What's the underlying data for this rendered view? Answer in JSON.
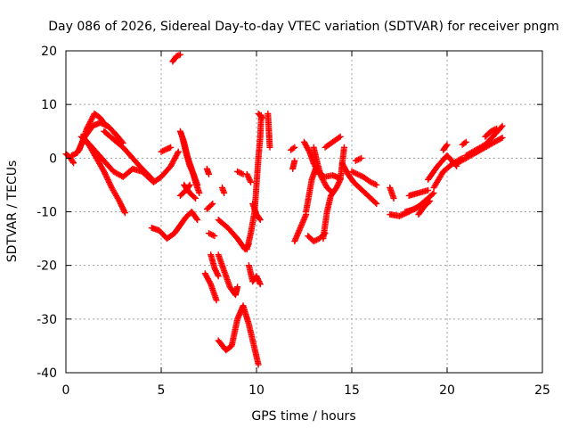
{
  "chart_data": {
    "type": "scatter",
    "title": "Day 086 of 2026, Sidereal Day-to-day VTEC variation (SDTVAR) for receiver pngm",
    "xlabel": "GPS time / hours",
    "ylabel": "SDTVAR / TECUs",
    "xlim": [
      0,
      25
    ],
    "ylim": [
      -40,
      20
    ],
    "xticks": [
      0,
      5,
      10,
      15,
      20,
      25
    ],
    "yticks": [
      -40,
      -30,
      -20,
      -10,
      0,
      10,
      20
    ],
    "grid": true,
    "marker": "plus",
    "color": "#ff0000",
    "tracks": [
      [
        [
          0.0,
          0.8
        ],
        [
          0.2,
          0.2
        ],
        [
          0.4,
          -0.9
        ]
      ],
      [
        [
          0.3,
          0.5
        ],
        [
          0.5,
          0.8
        ],
        [
          0.7,
          1.5
        ]
      ],
      [
        [
          0.6,
          1.0
        ],
        [
          1.0,
          4.0
        ],
        [
          1.4,
          6.0
        ],
        [
          1.8,
          6.6
        ],
        [
          2.2,
          6.0
        ],
        [
          2.6,
          4.5
        ],
        [
          3.0,
          2.8
        ]
      ],
      [
        [
          0.7,
          1.5
        ],
        [
          1.1,
          5.5
        ],
        [
          1.5,
          8.3
        ],
        [
          1.8,
          7.5
        ],
        [
          2.1,
          6.0
        ]
      ],
      [
        [
          0.8,
          4.0
        ],
        [
          1.2,
          2.5
        ],
        [
          1.6,
          0.0
        ],
        [
          2.0,
          -2.5
        ],
        [
          2.4,
          -5.5
        ],
        [
          2.8,
          -8.0
        ],
        [
          3.1,
          -10.2
        ]
      ],
      [
        [
          1.0,
          3.5
        ],
        [
          1.5,
          1.5
        ],
        [
          2.0,
          -0.5
        ],
        [
          2.5,
          -2.5
        ],
        [
          3.0,
          -3.5
        ],
        [
          3.5,
          -2.0
        ],
        [
          4.0,
          -2.5
        ],
        [
          4.6,
          -4.5
        ],
        [
          5.0,
          -3.5
        ],
        [
          5.5,
          -1.5
        ],
        [
          5.9,
          1.2
        ]
      ],
      [
        [
          2.0,
          5.0
        ],
        [
          2.5,
          3.5
        ],
        [
          3.0,
          2.0
        ],
        [
          3.5,
          0.0
        ],
        [
          4.0,
          -2.0
        ],
        [
          4.5,
          -3.8
        ]
      ],
      [
        [
          5.0,
          1.2
        ],
        [
          5.3,
          1.7
        ],
        [
          5.5,
          2.0
        ]
      ],
      [
        [
          5.6,
          18.0
        ],
        [
          5.8,
          19.0
        ],
        [
          6.0,
          19.3
        ]
      ],
      [
        [
          4.5,
          -13.0
        ],
        [
          4.9,
          -13.5
        ],
        [
          5.3,
          -15.0
        ],
        [
          5.7,
          -14.0
        ],
        [
          6.0,
          -12.5
        ],
        [
          6.3,
          -11.0
        ],
        [
          6.6,
          -10.0
        ],
        [
          6.9,
          -11.5
        ]
      ],
      [
        [
          6.0,
          5.0
        ],
        [
          6.2,
          3.0
        ],
        [
          6.4,
          0.0
        ],
        [
          6.6,
          -2.0
        ],
        [
          6.8,
          -4.5
        ],
        [
          7.0,
          -6.5
        ]
      ],
      [
        [
          6.1,
          4.0
        ],
        [
          6.3,
          1.0
        ],
        [
          6.5,
          -1.5
        ],
        [
          6.7,
          -3.0
        ],
        [
          6.9,
          -5.0
        ]
      ],
      [
        [
          6.2,
          -5.0
        ],
        [
          6.5,
          -6.5
        ],
        [
          6.8,
          -7.5
        ]
      ],
      [
        [
          6.0,
          -7.0
        ],
        [
          6.3,
          -6.0
        ],
        [
          6.5,
          -5.0
        ]
      ],
      [
        [
          7.4,
          -2.0
        ],
        [
          7.5,
          -3.0
        ]
      ],
      [
        [
          7.4,
          -9.5
        ],
        [
          7.7,
          -8.5
        ]
      ],
      [
        [
          7.5,
          -14.0
        ],
        [
          7.8,
          -14.5
        ]
      ],
      [
        [
          7.3,
          -21.5
        ],
        [
          7.6,
          -23.5
        ],
        [
          7.9,
          -26.5
        ]
      ],
      [
        [
          7.6,
          -18.0
        ],
        [
          7.8,
          -20.5
        ],
        [
          8.0,
          -22.0
        ]
      ],
      [
        [
          8.2,
          -5.5
        ],
        [
          8.3,
          -6.5
        ]
      ],
      [
        [
          8.0,
          -18.0
        ],
        [
          8.3,
          -21.0
        ],
        [
          8.6,
          -24.0
        ],
        [
          8.9,
          -25.5
        ],
        [
          9.0,
          -24.0
        ]
      ],
      [
        [
          8.0,
          -11.5
        ],
        [
          8.5,
          -13.0
        ],
        [
          9.0,
          -15.0
        ],
        [
          9.4,
          -17.0
        ],
        [
          9.6,
          -16.0
        ]
      ],
      [
        [
          8.0,
          -34.0
        ],
        [
          8.4,
          -35.8
        ],
        [
          8.7,
          -35.0
        ],
        [
          9.0,
          -30.0
        ],
        [
          9.3,
          -27.5
        ],
        [
          9.6,
          -31.0
        ],
        [
          9.9,
          -35.5
        ],
        [
          10.1,
          -38.5
        ]
      ],
      [
        [
          9.0,
          -2.5
        ],
        [
          9.3,
          -3.0
        ]
      ],
      [
        [
          9.5,
          -3.0
        ],
        [
          9.7,
          -4.5
        ]
      ],
      [
        [
          9.5,
          -17.0
        ],
        [
          9.7,
          -14.0
        ],
        [
          9.9,
          -10.0
        ],
        [
          10.0,
          -5.0
        ],
        [
          10.1,
          0.0
        ],
        [
          10.2,
          4.0
        ],
        [
          10.25,
          8.0
        ]
      ],
      [
        [
          9.6,
          -20.0
        ],
        [
          9.8,
          -23.0
        ],
        [
          10.0,
          -22.0
        ],
        [
          10.2,
          -23.5
        ]
      ],
      [
        [
          9.8,
          -8.5
        ],
        [
          10.0,
          -10.5
        ],
        [
          10.2,
          -11.5
        ]
      ],
      [
        [
          10.1,
          8.3
        ],
        [
          10.3,
          7.5
        ]
      ],
      [
        [
          10.6,
          8.3
        ],
        [
          10.7,
          2.0
        ]
      ],
      [
        [
          11.8,
          1.5
        ],
        [
          12.0,
          2.0
        ]
      ],
      [
        [
          11.9,
          -2.0
        ],
        [
          12.0,
          -0.5
        ]
      ],
      [
        [
          12.0,
          -15.5
        ],
        [
          12.3,
          -13.0
        ],
        [
          12.6,
          -10.5
        ]
      ],
      [
        [
          12.5,
          3.0
        ],
        [
          12.8,
          1.0
        ],
        [
          13.0,
          -1.0
        ],
        [
          13.3,
          -3.0
        ],
        [
          13.6,
          -3.5
        ],
        [
          14.0,
          -3.2
        ],
        [
          14.4,
          -3.8
        ]
      ],
      [
        [
          12.6,
          -10.0
        ],
        [
          12.9,
          -4.0
        ],
        [
          13.1,
          -2.0
        ],
        [
          13.4,
          -3.0
        ]
      ],
      [
        [
          12.7,
          -14.5
        ],
        [
          13.0,
          -15.5
        ],
        [
          13.3,
          -15.0
        ],
        [
          13.6,
          -14.0
        ]
      ],
      [
        [
          13.0,
          2.0
        ],
        [
          13.2,
          -1.0
        ],
        [
          13.4,
          -3.5
        ],
        [
          13.7,
          -5.5
        ],
        [
          14.0,
          -6.5
        ]
      ],
      [
        [
          13.5,
          -15.0
        ],
        [
          13.7,
          -10.0
        ],
        [
          13.9,
          -7.0
        ],
        [
          14.2,
          -5.5
        ],
        [
          14.4,
          -4.0
        ],
        [
          14.6,
          2.0
        ]
      ],
      [
        [
          13.6,
          2.0
        ],
        [
          13.8,
          2.5
        ],
        [
          14.0,
          3.0
        ],
        [
          14.2,
          3.5
        ],
        [
          14.4,
          4.0
        ]
      ],
      [
        [
          14.5,
          -1.0
        ],
        [
          14.8,
          -3.0
        ],
        [
          15.1,
          -4.5
        ],
        [
          15.4,
          -5.5
        ],
        [
          15.7,
          -6.5
        ],
        [
          16.0,
          -7.5
        ],
        [
          16.3,
          -8.5
        ]
      ],
      [
        [
          15.0,
          -2.5
        ],
        [
          15.3,
          -3.0
        ],
        [
          15.6,
          -3.5
        ],
        [
          16.0,
          -4.5
        ],
        [
          16.3,
          -5.0
        ]
      ],
      [
        [
          15.2,
          -0.5
        ],
        [
          15.5,
          0.0
        ]
      ],
      [
        [
          17.0,
          -5.5
        ],
        [
          17.2,
          -7.5
        ]
      ],
      [
        [
          17.0,
          -10.5
        ],
        [
          17.5,
          -10.8
        ],
        [
          18.0,
          -10.0
        ],
        [
          18.5,
          -9.0
        ],
        [
          19.0,
          -7.5
        ],
        [
          19.3,
          -6.5
        ]
      ],
      [
        [
          17.8,
          -10.0
        ],
        [
          18.3,
          -9.5
        ],
        [
          18.8,
          -8.5
        ]
      ],
      [
        [
          18.0,
          -7.0
        ],
        [
          18.5,
          -6.5
        ],
        [
          19.0,
          -6.0
        ]
      ],
      [
        [
          18.5,
          -10.5
        ],
        [
          18.8,
          -9.0
        ],
        [
          19.1,
          -8.0
        ]
      ],
      [
        [
          19.0,
          -4.0
        ],
        [
          19.5,
          -1.5
        ],
        [
          20.0,
          0.5
        ],
        [
          20.5,
          -1.5
        ]
      ],
      [
        [
          19.3,
          -5.5
        ],
        [
          19.8,
          -2.5
        ],
        [
          20.3,
          -1.0
        ],
        [
          20.8,
          0.0
        ]
      ],
      [
        [
          19.8,
          1.5
        ],
        [
          20.0,
          2.5
        ]
      ],
      [
        [
          20.8,
          2.5
        ],
        [
          21.0,
          3.0
        ]
      ],
      [
        [
          20.5,
          -1.0
        ],
        [
          21.0,
          0.0
        ],
        [
          21.5,
          1.0
        ],
        [
          22.0,
          2.0
        ],
        [
          22.5,
          3.0
        ],
        [
          22.9,
          3.8
        ]
      ],
      [
        [
          21.0,
          0.5
        ],
        [
          21.5,
          1.5
        ],
        [
          22.0,
          2.5
        ],
        [
          22.4,
          4.0
        ],
        [
          22.9,
          6.0
        ]
      ],
      [
        [
          22.0,
          4.0
        ],
        [
          22.3,
          5.0
        ],
        [
          22.6,
          5.5
        ]
      ]
    ]
  }
}
